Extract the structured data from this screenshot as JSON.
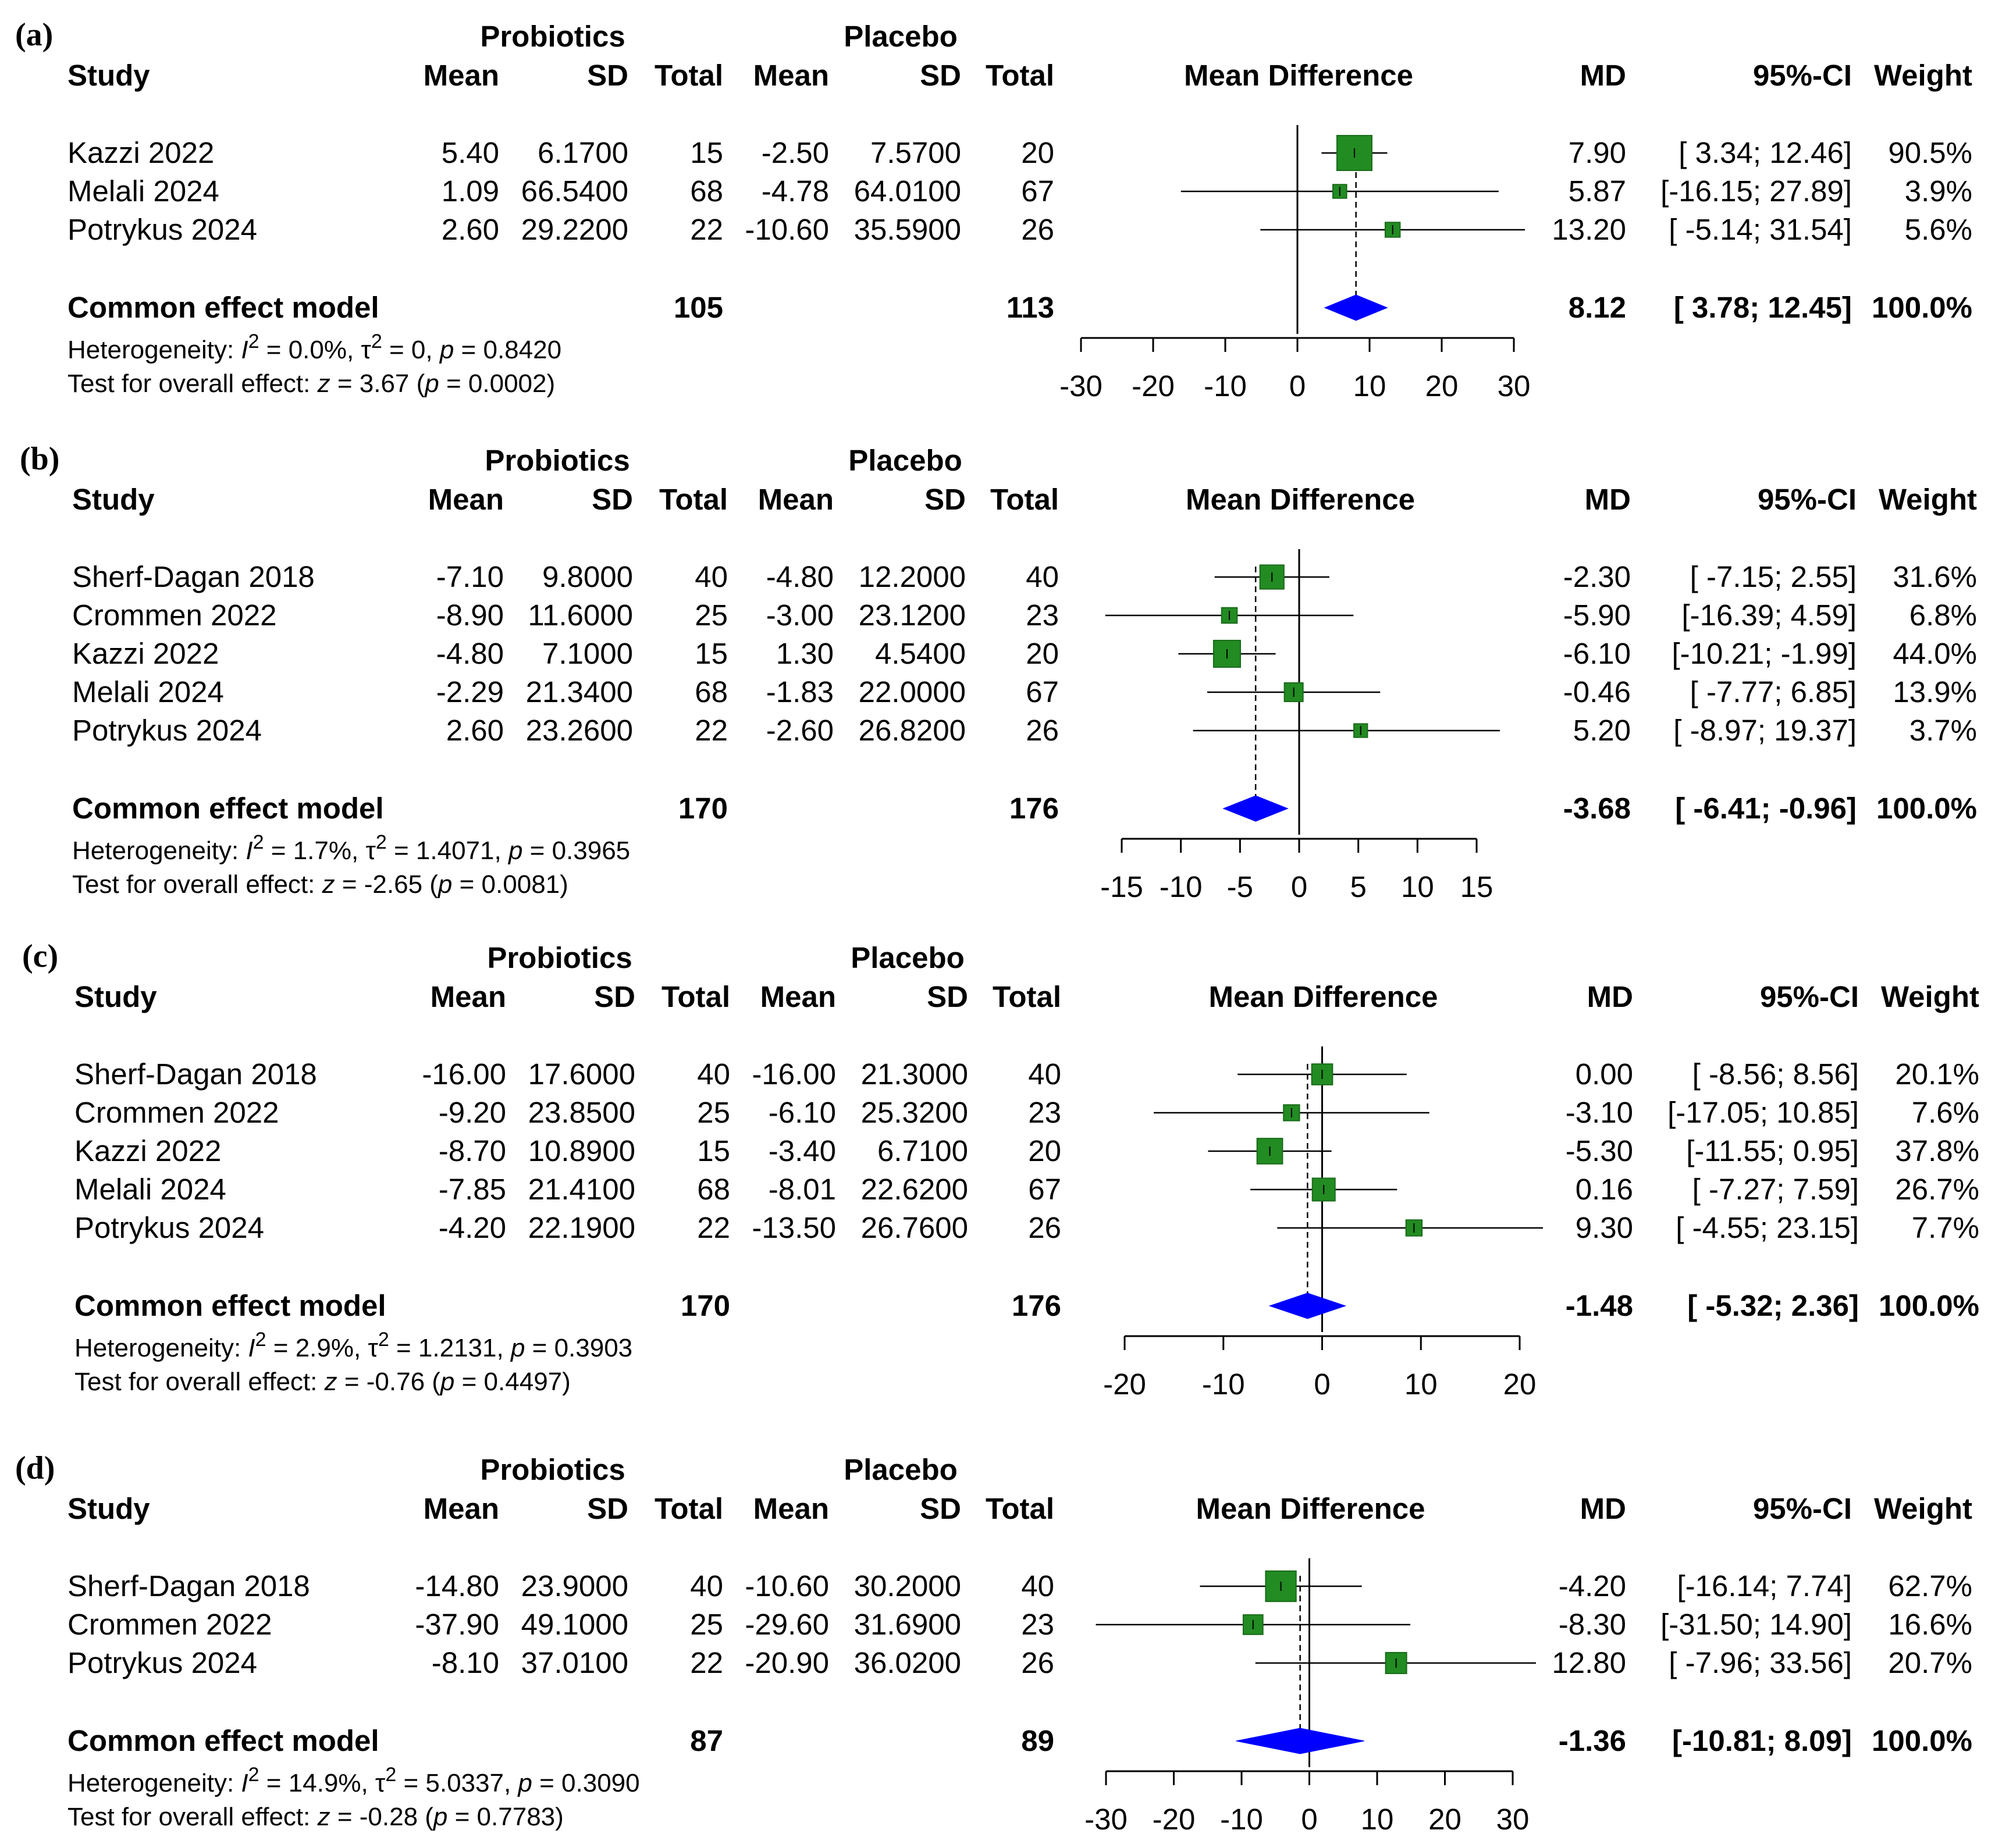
{
  "chart_data": [
    {
      "type": "forest",
      "panel_label": "(a)",
      "group1": "Probiotics",
      "group2": "Placebo",
      "columns": {
        "study": "Study",
        "mean1": "Mean",
        "sd1": "SD",
        "total1": "Total",
        "mean2": "Mean",
        "sd2": "SD",
        "total2": "Total",
        "plot": "Mean Difference",
        "md": "MD",
        "ci": "95%-CI",
        "weight": "Weight"
      },
      "studies": [
        {
          "name": "Kazzi 2022",
          "mean1": "5.40",
          "sd1": "6.1700",
          "total1": "15",
          "mean2": "-2.50",
          "sd2": "7.5700",
          "total2": "20",
          "md": 7.9,
          "lo": 3.34,
          "hi": 12.46,
          "w": 90.5,
          "md_text": "7.90",
          "ci_text": "[ 3.34; 12.46]",
          "weight_text": "90.5%"
        },
        {
          "name": "Melali 2024",
          "mean1": "1.09",
          "sd1": "66.5400",
          "total1": "68",
          "mean2": "-4.78",
          "sd2": "64.0100",
          "total2": "67",
          "md": 5.87,
          "lo": -16.15,
          "hi": 27.89,
          "w": 3.9,
          "md_text": "5.87",
          "ci_text": "[-16.15; 27.89]",
          "weight_text": "3.9%"
        },
        {
          "name": "Potrykus 2024",
          "mean1": "2.60",
          "sd1": "29.2200",
          "total1": "22",
          "mean2": "-10.60",
          "sd2": "35.5900",
          "total2": "26",
          "md": 13.2,
          "lo": -5.14,
          "hi": 31.54,
          "w": 5.6,
          "md_text": "13.20",
          "ci_text": "[ -5.14; 31.54]",
          "weight_text": "5.6%"
        }
      ],
      "pooled": {
        "label": "Common effect model",
        "total1": "105",
        "total2": "113",
        "md": 8.12,
        "lo": 3.78,
        "hi": 12.45,
        "md_text": "8.12",
        "ci_text": "[ 3.78; 12.45]",
        "weight_text": "100.0%"
      },
      "heterogeneity": {
        "prefix": "Heterogeneity: ",
        "i2": "I",
        "sup": "2",
        "i2_val": " = 0.0%, ",
        "tau": "τ",
        "tau_val": " = 0, ",
        "p": "p",
        "p_val": " = 0.8420"
      },
      "overall": {
        "prefix": "Test for overall effect: ",
        "z": "z",
        "z_val": " = 3.67 (",
        "p": "p",
        "p_val": " = 0.0002)"
      },
      "xlim": [
        -30,
        30
      ],
      "ticks": [
        -30,
        -20,
        -10,
        0,
        10,
        20,
        30
      ],
      "tick_labels": [
        "-30",
        "-20",
        "-10",
        "0",
        "10",
        "20",
        "30"
      ]
    },
    {
      "type": "forest",
      "panel_label": "(b)",
      "group1": "Probiotics",
      "group2": "Placebo",
      "columns": {
        "study": "Study",
        "mean1": "Mean",
        "sd1": "SD",
        "total1": "Total",
        "mean2": "Mean",
        "sd2": "SD",
        "total2": "Total",
        "plot": "Mean Difference",
        "md": "MD",
        "ci": "95%-CI",
        "weight": "Weight"
      },
      "studies": [
        {
          "name": "Sherf-Dagan 2018",
          "mean1": "-7.10",
          "sd1": "9.8000",
          "total1": "40",
          "mean2": "-4.80",
          "sd2": "12.2000",
          "total2": "40",
          "md": -2.3,
          "lo": -7.15,
          "hi": 2.55,
          "w": 31.6,
          "md_text": "-2.30",
          "ci_text": "[ -7.15; 2.55]",
          "weight_text": "31.6%"
        },
        {
          "name": "Crommen 2022",
          "mean1": "-8.90",
          "sd1": "11.6000",
          "total1": "25",
          "mean2": "-3.00",
          "sd2": "23.1200",
          "total2": "23",
          "md": -5.9,
          "lo": -16.39,
          "hi": 4.59,
          "w": 6.8,
          "md_text": "-5.90",
          "ci_text": "[-16.39; 4.59]",
          "weight_text": "6.8%"
        },
        {
          "name": "Kazzi 2022",
          "mean1": "-4.80",
          "sd1": "7.1000",
          "total1": "15",
          "mean2": "1.30",
          "sd2": "4.5400",
          "total2": "20",
          "md": -6.1,
          "lo": -10.21,
          "hi": -1.99,
          "w": 44.0,
          "md_text": "-6.10",
          "ci_text": "[-10.21; -1.99]",
          "weight_text": "44.0%"
        },
        {
          "name": "Melali 2024",
          "mean1": "-2.29",
          "sd1": "21.3400",
          "total1": "68",
          "mean2": "-1.83",
          "sd2": "22.0000",
          "total2": "67",
          "md": -0.46,
          "lo": -7.77,
          "hi": 6.85,
          "w": 13.9,
          "md_text": "-0.46",
          "ci_text": "[ -7.77; 6.85]",
          "weight_text": "13.9%"
        },
        {
          "name": "Potrykus 2024",
          "mean1": "2.60",
          "sd1": "23.2600",
          "total1": "22",
          "mean2": "-2.60",
          "sd2": "26.8200",
          "total2": "26",
          "md": 5.2,
          "lo": -8.97,
          "hi": 19.37,
          "w": 3.7,
          "md_text": "5.20",
          "ci_text": "[ -8.97; 19.37]",
          "weight_text": "3.7%"
        }
      ],
      "pooled": {
        "label": "Common effect model",
        "total1": "170",
        "total2": "176",
        "md": -3.68,
        "lo": -6.41,
        "hi": -0.96,
        "md_text": "-3.68",
        "ci_text": "[ -6.41; -0.96]",
        "weight_text": "100.0%"
      },
      "heterogeneity": {
        "prefix": "Heterogeneity: ",
        "i2": "I",
        "sup": "2",
        "i2_val": " = 1.7%, ",
        "tau": "τ",
        "tau_val": " = 1.4071, ",
        "p": "p",
        "p_val": " = 0.3965"
      },
      "overall": {
        "prefix": "Test for overall effect: ",
        "z": "z",
        "z_val": " = -2.65 (",
        "p": "p",
        "p_val": " = 0.0081)"
      },
      "xlim": [
        -15,
        15
      ],
      "ticks": [
        -15,
        -10,
        -5,
        0,
        5,
        10,
        15
      ],
      "tick_labels": [
        "-15",
        "-10",
        "-5",
        "0",
        "5",
        "10",
        "15"
      ]
    },
    {
      "type": "forest",
      "panel_label": "(c)",
      "group1": "Probiotics",
      "group2": "Placebo",
      "columns": {
        "study": "Study",
        "mean1": "Mean",
        "sd1": "SD",
        "total1": "Total",
        "mean2": "Mean",
        "sd2": "SD",
        "total2": "Total",
        "plot": "Mean Difference",
        "md": "MD",
        "ci": "95%-CI",
        "weight": "Weight"
      },
      "studies": [
        {
          "name": "Sherf-Dagan 2018",
          "mean1": "-16.00",
          "sd1": "17.6000",
          "total1": "40",
          "mean2": "-16.00",
          "sd2": "21.3000",
          "total2": "40",
          "md": 0.0,
          "lo": -8.56,
          "hi": 8.56,
          "w": 20.1,
          "md_text": "0.00",
          "ci_text": "[ -8.56; 8.56]",
          "weight_text": "20.1%"
        },
        {
          "name": "Crommen 2022",
          "mean1": "-9.20",
          "sd1": "23.8500",
          "total1": "25",
          "mean2": "-6.10",
          "sd2": "25.3200",
          "total2": "23",
          "md": -3.1,
          "lo": -17.05,
          "hi": 10.85,
          "w": 7.6,
          "md_text": "-3.10",
          "ci_text": "[-17.05; 10.85]",
          "weight_text": "7.6%"
        },
        {
          "name": "Kazzi 2022",
          "mean1": "-8.70",
          "sd1": "10.8900",
          "total1": "15",
          "mean2": "-3.40",
          "sd2": "6.7100",
          "total2": "20",
          "md": -5.3,
          "lo": -11.55,
          "hi": 0.95,
          "w": 37.8,
          "md_text": "-5.30",
          "ci_text": "[-11.55; 0.95]",
          "weight_text": "37.8%"
        },
        {
          "name": "Melali 2024",
          "mean1": "-7.85",
          "sd1": "21.4100",
          "total1": "68",
          "mean2": "-8.01",
          "sd2": "22.6200",
          "total2": "67",
          "md": 0.16,
          "lo": -7.27,
          "hi": 7.59,
          "w": 26.7,
          "md_text": "0.16",
          "ci_text": "[ -7.27; 7.59]",
          "weight_text": "26.7%"
        },
        {
          "name": "Potrykus 2024",
          "mean1": "-4.20",
          "sd1": "22.1900",
          "total1": "22",
          "mean2": "-13.50",
          "sd2": "26.7600",
          "total2": "26",
          "md": 9.3,
          "lo": -4.55,
          "hi": 23.15,
          "w": 7.7,
          "md_text": "9.30",
          "ci_text": "[ -4.55; 23.15]",
          "weight_text": "7.7%"
        }
      ],
      "pooled": {
        "label": "Common effect model",
        "total1": "170",
        "total2": "176",
        "md": -1.48,
        "lo": -5.32,
        "hi": 2.36,
        "md_text": "-1.48",
        "ci_text": "[ -5.32; 2.36]",
        "weight_text": "100.0%"
      },
      "heterogeneity": {
        "prefix": "Heterogeneity: ",
        "i2": "I",
        "sup": "2",
        "i2_val": " = 2.9%, ",
        "tau": "τ",
        "tau_val": " = 1.2131, ",
        "p": "p",
        "p_val": " = 0.3903"
      },
      "overall": {
        "prefix": "Test for overall effect: ",
        "z": "z",
        "z_val": " = -0.76 (",
        "p": "p",
        "p_val": " = 0.4497)"
      },
      "xlim": [
        -20,
        20
      ],
      "ticks": [
        -20,
        -10,
        0,
        10,
        20
      ],
      "tick_labels": [
        "-20",
        "-10",
        "0",
        "10",
        "20"
      ]
    },
    {
      "type": "forest",
      "panel_label": "(d)",
      "group1": "Probiotics",
      "group2": "Placebo",
      "columns": {
        "study": "Study",
        "mean1": "Mean",
        "sd1": "SD",
        "total1": "Total",
        "mean2": "Mean",
        "sd2": "SD",
        "total2": "Total",
        "plot": "Mean Difference",
        "md": "MD",
        "ci": "95%-CI",
        "weight": "Weight"
      },
      "studies": [
        {
          "name": "Sherf-Dagan 2018",
          "mean1": "-14.80",
          "sd1": "23.9000",
          "total1": "40",
          "mean2": "-10.60",
          "sd2": "30.2000",
          "total2": "40",
          "md": -4.2,
          "lo": -16.14,
          "hi": 7.74,
          "w": 62.7,
          "md_text": "-4.20",
          "ci_text": "[-16.14; 7.74]",
          "weight_text": "62.7%"
        },
        {
          "name": "Crommen 2022",
          "mean1": "-37.90",
          "sd1": "49.1000",
          "total1": "25",
          "mean2": "-29.60",
          "sd2": "31.6900",
          "total2": "23",
          "md": -8.3,
          "lo": -31.5,
          "hi": 14.9,
          "w": 16.6,
          "md_text": "-8.30",
          "ci_text": "[-31.50; 14.90]",
          "weight_text": "16.6%"
        },
        {
          "name": "Potrykus 2024",
          "mean1": "-8.10",
          "sd1": "37.0100",
          "total1": "22",
          "mean2": "-20.90",
          "sd2": "36.0200",
          "total2": "26",
          "md": 12.8,
          "lo": -7.96,
          "hi": 33.56,
          "w": 20.7,
          "md_text": "12.80",
          "ci_text": "[ -7.96; 33.56]",
          "weight_text": "20.7%"
        }
      ],
      "pooled": {
        "label": "Common effect model",
        "total1": "87",
        "total2": "89",
        "md": -1.36,
        "lo": -10.81,
        "hi": 8.09,
        "md_text": "-1.36",
        "ci_text": "[-10.81; 8.09]",
        "weight_text": "100.0%"
      },
      "heterogeneity": {
        "prefix": "Heterogeneity: ",
        "i2": "I",
        "sup": "2",
        "i2_val": " = 14.9%, ",
        "tau": "τ",
        "tau_val": " = 5.0337, ",
        "p": "p",
        "p_val": " = 0.3090"
      },
      "overall": {
        "prefix": "Test for overall effect: ",
        "z": "z",
        "z_val": " = -0.28 (",
        "p": "p",
        "p_val": " = 0.7783)"
      },
      "xlim": [
        -30,
        30
      ],
      "ticks": [
        -30,
        -20,
        -10,
        0,
        10,
        20,
        30
      ],
      "tick_labels": [
        "-30",
        "-20",
        "-10",
        "0",
        "10",
        "20",
        "30"
      ]
    }
  ],
  "colors": {
    "box": "#228b22",
    "box_stroke": "#1a6b1a",
    "diamond": "#0000ff",
    "line": "#000000"
  }
}
